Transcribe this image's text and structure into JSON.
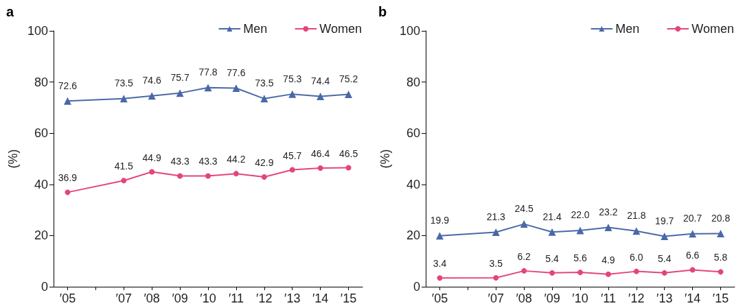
{
  "chart_data": [
    {
      "type": "line",
      "title": "a",
      "ylabel": "(%)",
      "categories": [
        "′05",
        null,
        "′07",
        "′08",
        "′09",
        "′10",
        "′11",
        "′12",
        "′13",
        "′14",
        "′15"
      ],
      "ylim": [
        0,
        100
      ],
      "yticks": [
        0,
        20,
        40,
        60,
        80,
        100
      ],
      "grid": false,
      "legend": "top right",
      "line_style": "solid",
      "series": [
        {
          "name": "Men",
          "color": "#4a68a8",
          "marker": "triangle",
          "values": [
            72.6,
            null,
            73.5,
            74.6,
            75.7,
            77.8,
            77.6,
            73.5,
            75.3,
            74.4,
            75.2
          ],
          "value_labels": [
            "72.6",
            null,
            "73.5",
            "74.6",
            "75.7",
            "77.8",
            "77.6",
            "73.5",
            "75.3",
            "74.4",
            "75.2"
          ]
        },
        {
          "name": "Women",
          "color": "#e4457a",
          "marker": "circle",
          "values": [
            36.9,
            null,
            41.5,
            44.9,
            43.3,
            43.3,
            44.2,
            42.9,
            45.7,
            46.4,
            46.5
          ],
          "value_labels": [
            "36.9",
            null,
            "41.5",
            "44.9",
            "43.3",
            "43.3",
            "44.2",
            "42.9",
            "45.7",
            "46.4",
            "46.5"
          ]
        }
      ]
    },
    {
      "type": "line",
      "title": "b",
      "ylabel": "(%)",
      "categories": [
        "′05",
        null,
        "′07",
        "′08",
        "′09",
        "′10",
        "′11",
        "′12",
        "′13",
        "′14",
        "′15"
      ],
      "ylim": [
        0,
        100
      ],
      "yticks": [
        0,
        20,
        40,
        60,
        80,
        100
      ],
      "grid": false,
      "legend": "top right",
      "line_style": "solid",
      "series": [
        {
          "name": "Men",
          "color": "#4a68a8",
          "marker": "triangle",
          "values": [
            19.9,
            null,
            21.3,
            24.5,
            21.4,
            22.0,
            23.2,
            21.8,
            19.7,
            20.7,
            20.8
          ],
          "value_labels": [
            "19.9",
            null,
            "21.3",
            "24.5",
            "21.4",
            "22.0",
            "23.2",
            "21.8",
            "19.7",
            "20.7",
            "20.8"
          ]
        },
        {
          "name": "Women",
          "color": "#e4457a",
          "marker": "circle",
          "values": [
            3.4,
            null,
            3.5,
            6.2,
            5.4,
            5.6,
            4.9,
            6.0,
            5.4,
            6.6,
            5.8
          ],
          "value_labels": [
            "3.4",
            null,
            "3.5",
            "6.2",
            "5.4",
            "5.6",
            "4.9",
            "6.0",
            "5.4",
            "6.6",
            "5.8"
          ]
        }
      ]
    }
  ]
}
